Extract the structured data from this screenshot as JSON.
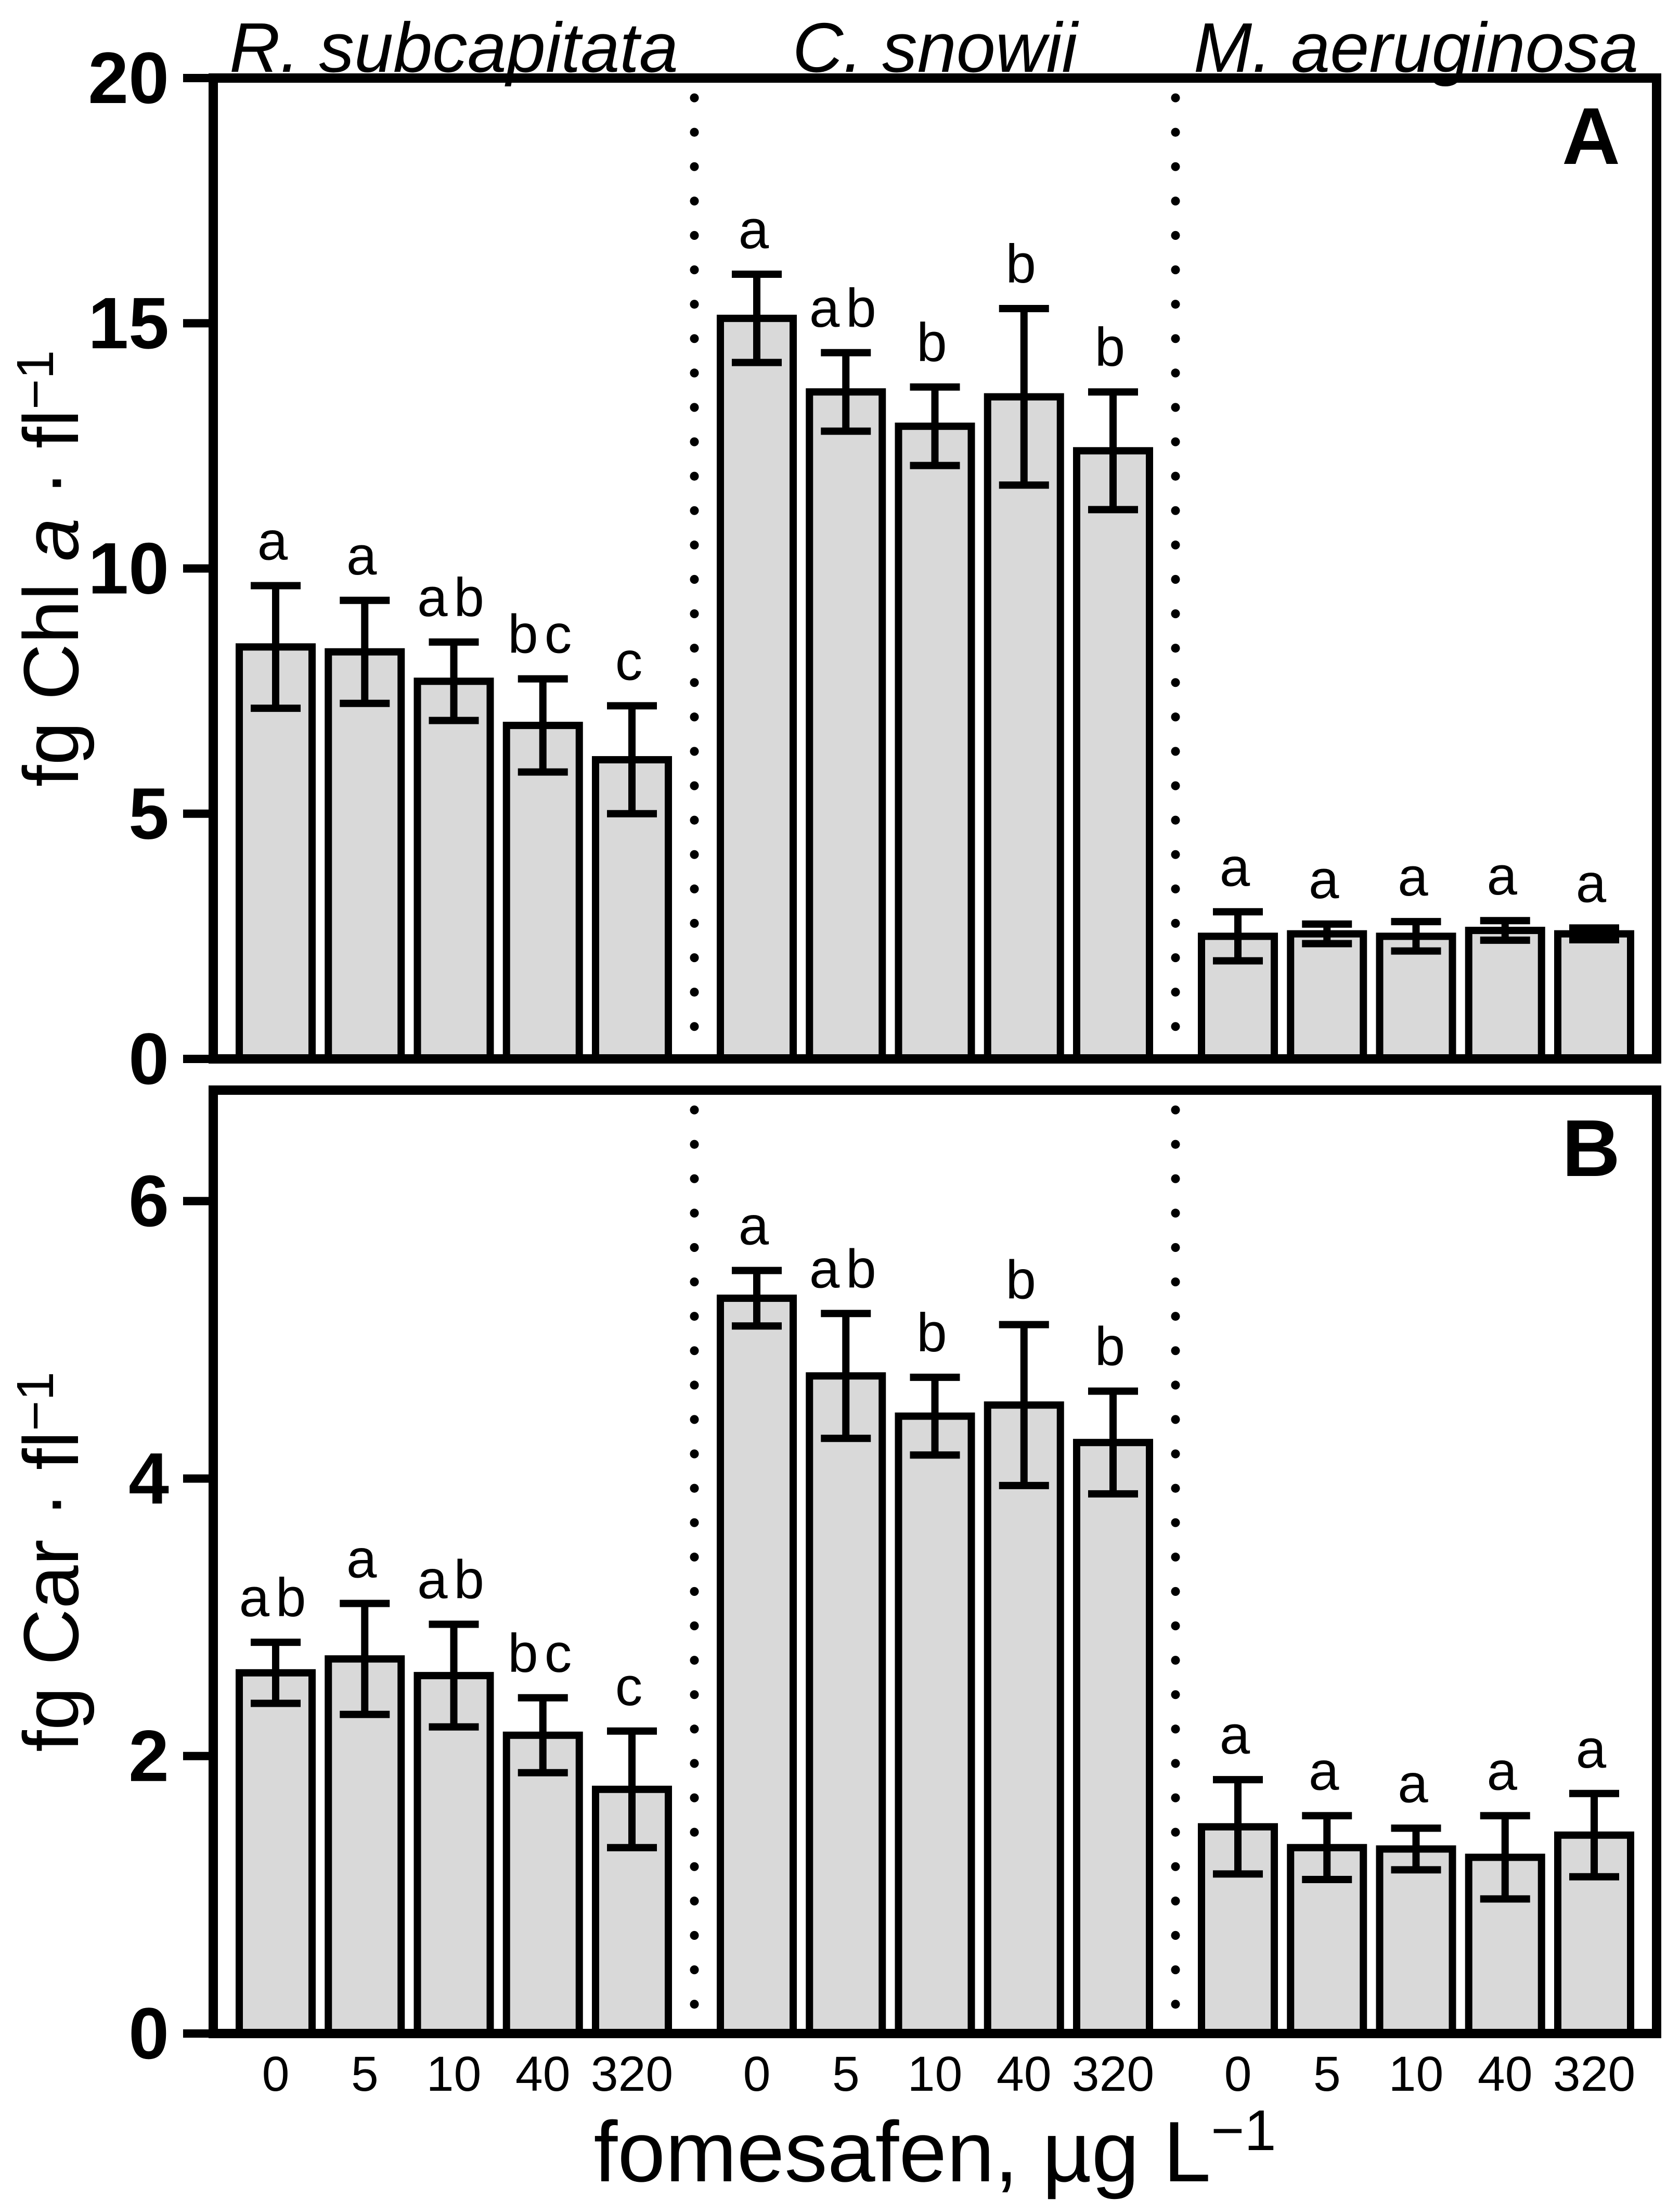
{
  "colors": {
    "background": "#ffffff",
    "ink": "#000000",
    "bar_fill": "#d9d9d9"
  },
  "figure": {
    "species_titles": [
      "R. subcapitata",
      "C. snowii",
      "M. aeruginosa"
    ],
    "x_tick_labels": [
      "0",
      "5",
      "10",
      "40",
      "320"
    ],
    "xlabel": "fomesafen, µg L−1",
    "xlabel_parts": [
      {
        "text": "fomesafen, µg L",
        "style": "normal"
      },
      {
        "text": "−1",
        "style": "sup"
      }
    ]
  },
  "chart_data": [
    {
      "type": "bar",
      "panel_label": "A",
      "title": "",
      "ylabel": "fg Chl a · fl−1",
      "ylabel_parts": [
        {
          "text": "fg Chl ",
          "style": "normal"
        },
        {
          "text": "a",
          "style": "italic"
        },
        {
          "text": " · fl",
          "style": "normal"
        },
        {
          "text": "−1",
          "style": "sup"
        }
      ],
      "ylim": [
        0,
        20
      ],
      "yticks": [
        0,
        5,
        10,
        15,
        20
      ],
      "grid": false,
      "legend": false,
      "categories": [
        "0",
        "5",
        "10",
        "40",
        "320"
      ],
      "series": [
        {
          "name": "R. subcapitata",
          "values": [
            8.4,
            8.3,
            7.7,
            6.8,
            6.1
          ],
          "errors": [
            1.25,
            1.05,
            0.8,
            0.95,
            1.1
          ],
          "letters": [
            "a",
            "a",
            "ab",
            "bc",
            "c"
          ]
        },
        {
          "name": "C. snowii",
          "values": [
            15.1,
            13.6,
            12.9,
            13.5,
            12.4
          ],
          "errors": [
            0.9,
            0.8,
            0.8,
            1.8,
            1.2
          ],
          "letters": [
            "a",
            "ab",
            "b",
            "b",
            "b"
          ]
        },
        {
          "name": "M. aeruginosa",
          "values": [
            2.5,
            2.55,
            2.5,
            2.62,
            2.55
          ],
          "errors": [
            0.5,
            0.2,
            0.3,
            0.2,
            0.12
          ],
          "letters": [
            "a",
            "a",
            "a",
            "a",
            "a"
          ]
        }
      ]
    },
    {
      "type": "bar",
      "panel_label": "B",
      "title": "",
      "ylabel": "fg Car · fl−1",
      "ylabel_parts": [
        {
          "text": "fg Car · fl",
          "style": "normal"
        },
        {
          "text": "−1",
          "style": "sup"
        }
      ],
      "ylim": [
        0,
        6.8
      ],
      "yticks": [
        0,
        2,
        4,
        6
      ],
      "grid": false,
      "legend": false,
      "categories": [
        "0",
        "5",
        "10",
        "40",
        "320"
      ],
      "series": [
        {
          "name": "R. subcapitata",
          "values": [
            2.6,
            2.7,
            2.58,
            2.15,
            1.76
          ],
          "errors": [
            0.22,
            0.4,
            0.37,
            0.27,
            0.42
          ],
          "letters": [
            "ab",
            "a",
            "ab",
            "bc",
            "c"
          ]
        },
        {
          "name": "C. snowii",
          "values": [
            5.3,
            4.74,
            4.45,
            4.53,
            4.26
          ],
          "errors": [
            0.2,
            0.45,
            0.28,
            0.58,
            0.37
          ],
          "letters": [
            "a",
            "ab",
            "b",
            "b",
            "b"
          ]
        },
        {
          "name": "M. aeruginosa",
          "values": [
            1.49,
            1.34,
            1.33,
            1.27,
            1.43
          ],
          "errors": [
            0.34,
            0.23,
            0.15,
            0.3,
            0.3
          ],
          "letters": [
            "a",
            "a",
            "a",
            "a",
            "a"
          ]
        }
      ]
    }
  ]
}
